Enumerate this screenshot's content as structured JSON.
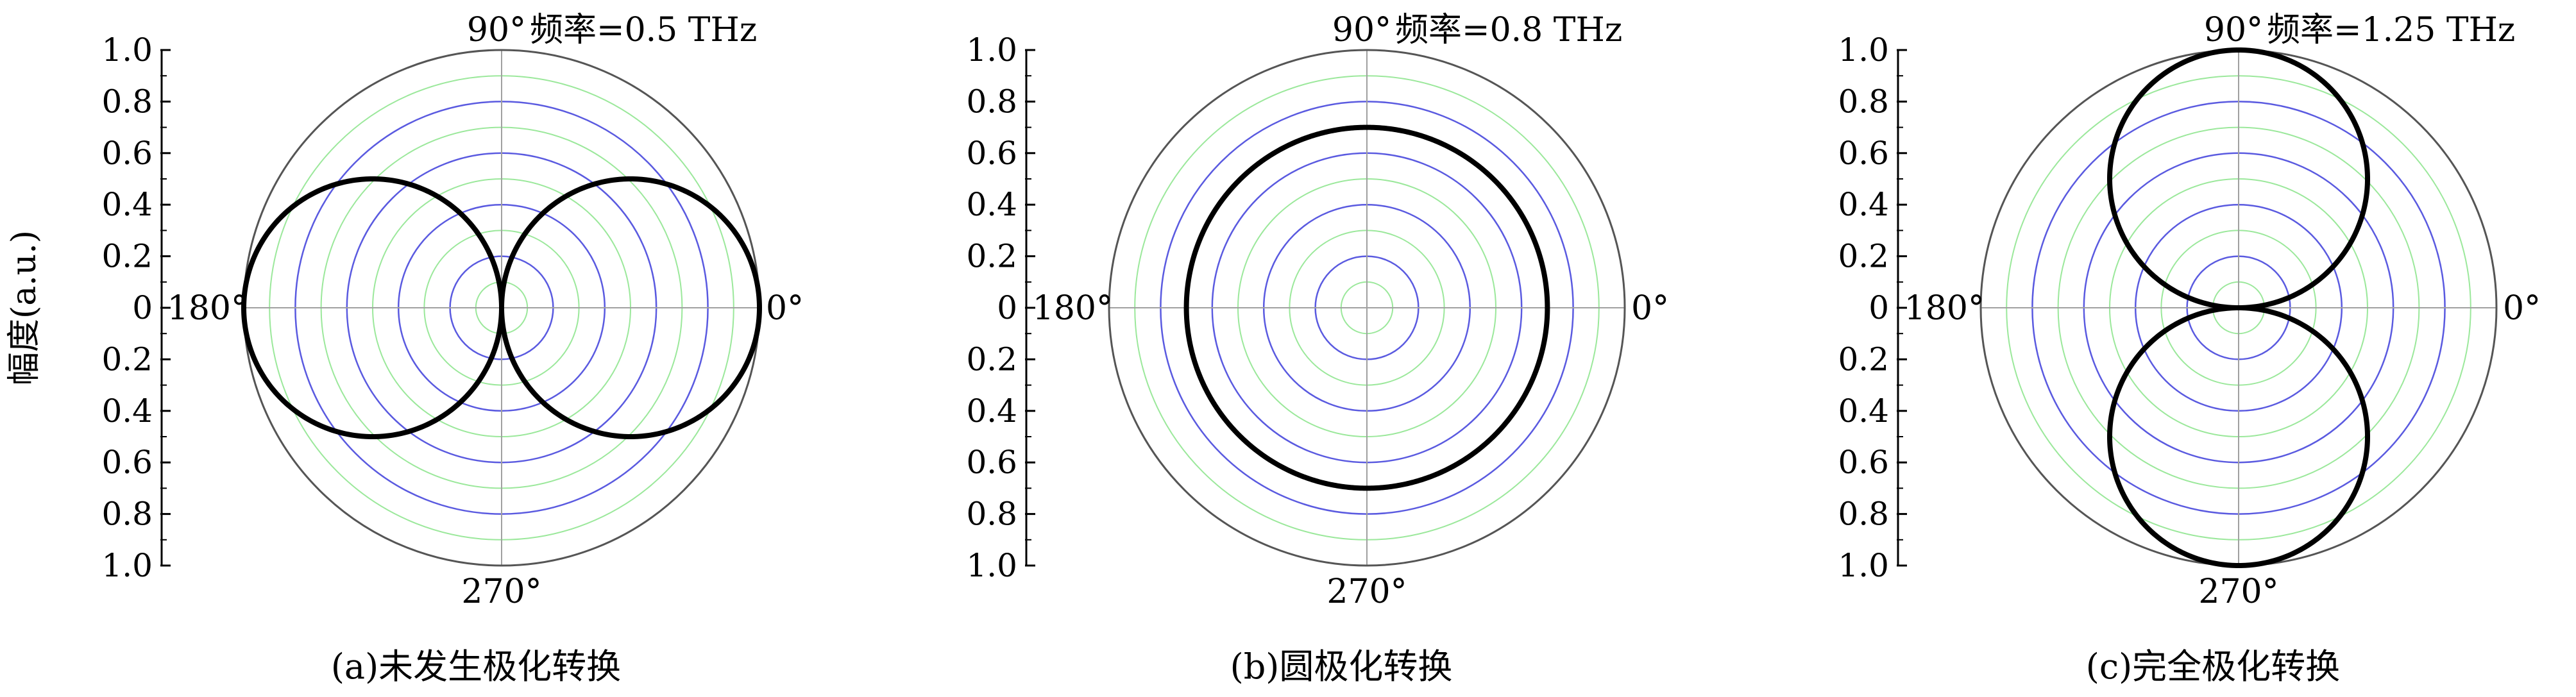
{
  "figure": {
    "ylabel": "幅度(a.u.)",
    "angle_labels": {
      "right": "0°",
      "top": "90°",
      "left": "180°",
      "bottom": "270°"
    },
    "ytick_labels": [
      "1.0",
      "0.8",
      "0.6",
      "0.4",
      "0.2",
      "0",
      "0.2",
      "0.4",
      "0.6",
      "0.8",
      "1.0"
    ]
  },
  "colors": {
    "outer_circle": "#555555",
    "major_ring": "#5a5ae0",
    "minor_ring": "#9be89b",
    "spoke": "#a0a0a0",
    "curve": "#000000"
  },
  "chart_data": [
    {
      "type": "polar",
      "title": "频率=0.5 THz",
      "caption": "(a)未发生极化转换",
      "pattern": "cos2",
      "amplitude": 1.0,
      "rlim": [
        0,
        1.0
      ],
      "rings": [
        0.1,
        0.2,
        0.3,
        0.4,
        0.5,
        0.6,
        0.7,
        0.8,
        0.9
      ],
      "angles_deg": [
        0,
        90,
        180,
        270
      ],
      "series": [
        {
          "values": "r = |cos θ|, peak 1.0 at 0° and 180°, 0 at 90° and 270°"
        }
      ]
    },
    {
      "type": "polar",
      "title": "频率=0.8 THz",
      "caption": "(b)圆极化转换",
      "pattern": "circle",
      "amplitude": 0.7,
      "rlim": [
        0,
        1.0
      ],
      "rings": [
        0.1,
        0.2,
        0.3,
        0.4,
        0.5,
        0.6,
        0.7,
        0.8,
        0.9
      ],
      "angles_deg": [
        0,
        90,
        180,
        270
      ],
      "series": [
        {
          "values": "r ≈ 0.7 constant for all θ"
        }
      ]
    },
    {
      "type": "polar",
      "title": "频率=1.25 THz",
      "caption": "(c)完全极化转换",
      "pattern": "sin2",
      "amplitude": 1.0,
      "rlim": [
        0,
        1.0
      ],
      "rings": [
        0.1,
        0.2,
        0.3,
        0.4,
        0.5,
        0.6,
        0.7,
        0.8,
        0.9
      ],
      "angles_deg": [
        0,
        90,
        180,
        270
      ],
      "series": [
        {
          "values": "r = |sin θ|, peak 1.0 at 90° and 270°, 0 at 0° and 180°"
        }
      ]
    }
  ]
}
